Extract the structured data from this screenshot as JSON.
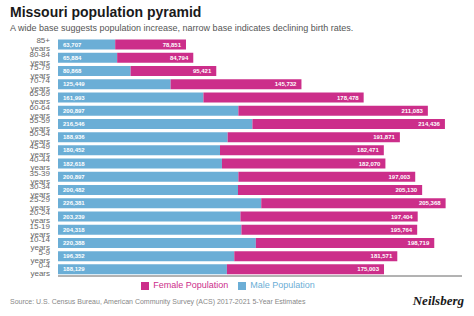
{
  "chart_data": {
    "type": "bar",
    "orientation": "horizontal",
    "stacked": true,
    "title": "Missouri population pyramid",
    "subtitle": "A wide base suggests population increase, narrow base indicates declining birth rates.",
    "annotations": [
      "Source: U.S. Census Bureau, American Community Survey (ACS) 2017-2021 5-Year Estimates",
      "Neilsberg"
    ],
    "categories": [
      "85+ years",
      "80-84 years",
      "75-79 years",
      "70-74 years",
      "65-69 years",
      "60-64 years",
      "55-59 years",
      "50-54 years",
      "45-49 years",
      "40-44 years",
      "35-39 years",
      "30-34 years",
      "25-29 years",
      "20-24 years",
      "15-19 years",
      "10-14 years",
      "5-9 years",
      "0-4 years"
    ],
    "series": [
      {
        "name": "Male Population",
        "color": "#6baed6",
        "values": [
          63707,
          65884,
          80868,
          125449,
          161993,
          200897,
          216546,
          188936,
          180452,
          182618,
          200897,
          200482,
          226381,
          203239,
          204318,
          220388,
          196352,
          188129
        ],
        "value_labels": [
          "63,707",
          "65,884",
          "80,868",
          "125,449",
          "161,993",
          "200,897",
          "216,546",
          "188,936",
          "180,452",
          "182,618",
          "200,897",
          "200,482",
          "226,381",
          "203,239",
          "204,318",
          "220,388",
          "196,352",
          "188,129"
        ]
      },
      {
        "name": "Female Population",
        "color": "#cc2e8a",
        "values": [
          78851,
          84794,
          95421,
          145732,
          178478,
          211083,
          214436,
          191871,
          182471,
          182070,
          197003,
          205130,
          205368,
          197404,
          195764,
          198719,
          181571,
          175003
        ],
        "value_labels": [
          "78,851",
          "84,794",
          "95,421",
          "145,732",
          "178,478",
          "211,083",
          "214,436",
          "191,871",
          "182,471",
          "182,070",
          "197,003",
          "205,130",
          "205,368",
          "197,404",
          "195,764",
          "198,719",
          "181,571",
          "175,003"
        ]
      }
    ],
    "xlim": [
      0,
      450000
    ],
    "data_labels": true,
    "tick_labels": "y",
    "grid": false,
    "legend": "bottom"
  }
}
